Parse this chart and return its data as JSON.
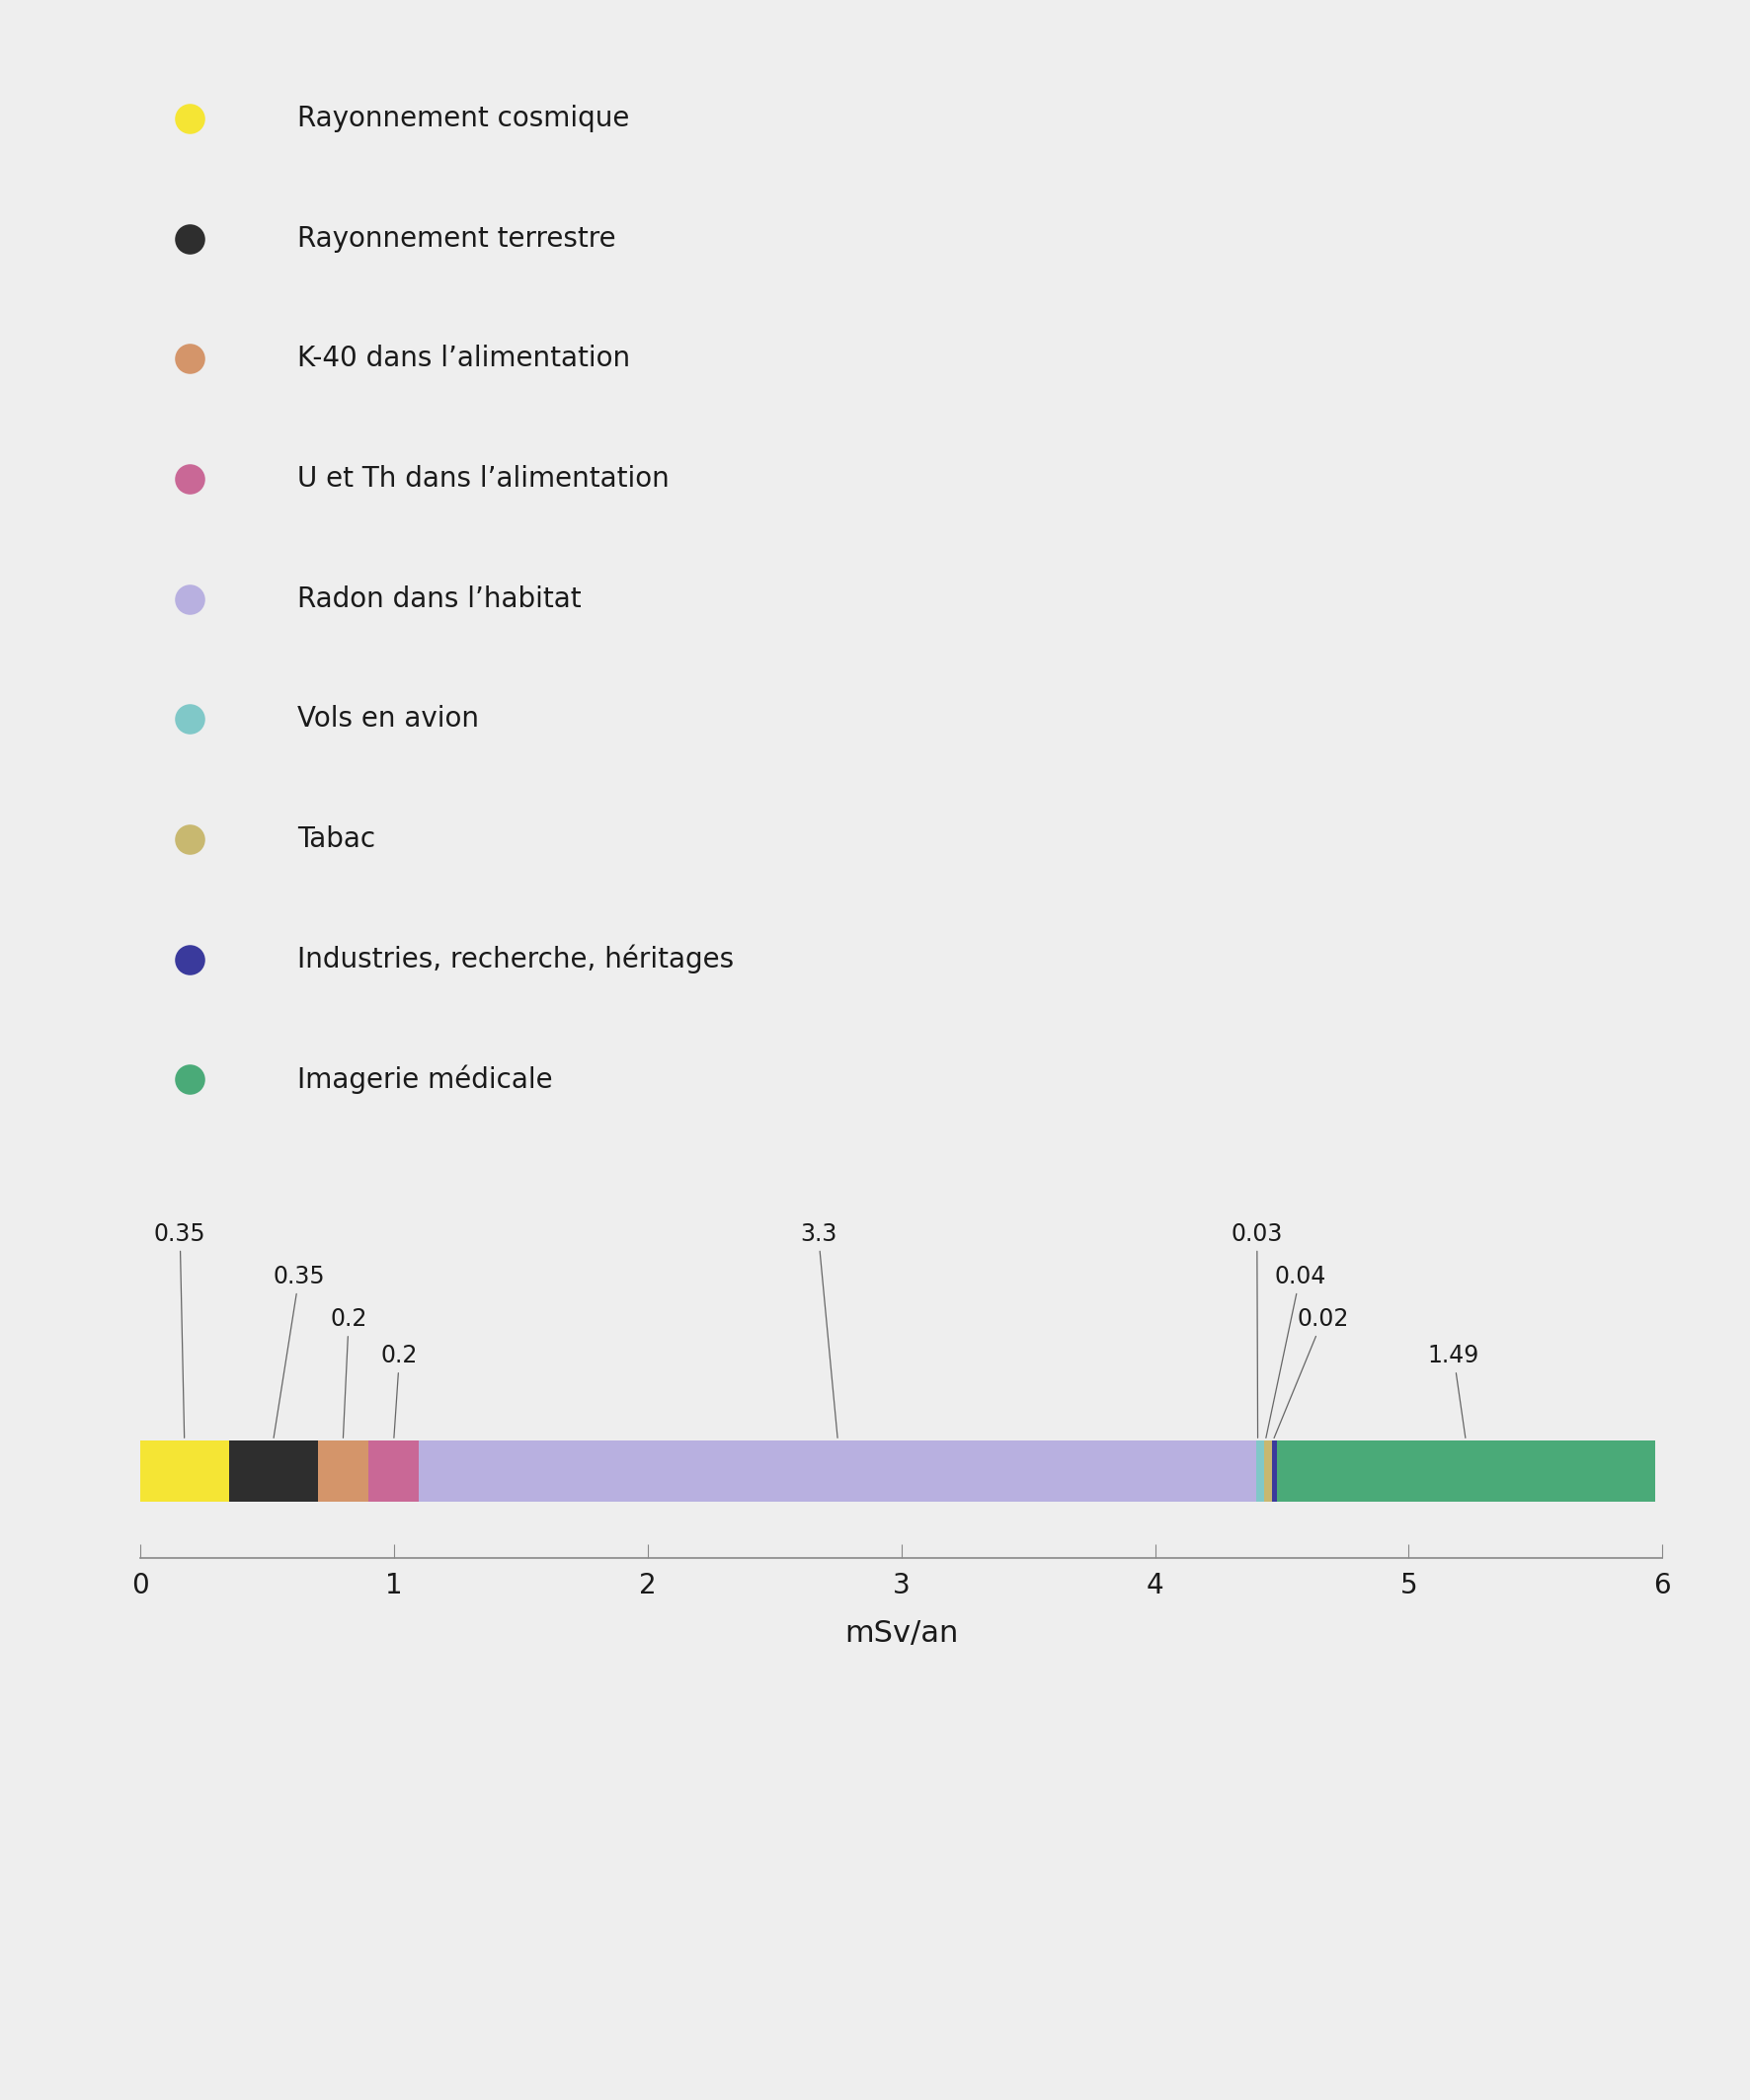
{
  "background_color": "#eeeeee",
  "segments": [
    {
      "label": "Rayonnement cosmique",
      "value": 0.35,
      "color": "#f5e534"
    },
    {
      "label": "Rayonnement terrestre",
      "value": 0.35,
      "color": "#2e2e2e"
    },
    {
      "label": "K-40 dans l’alimentation",
      "value": 0.2,
      "color": "#d4956a"
    },
    {
      "label": "U et Th dans l’alimentation",
      "value": 0.2,
      "color": "#c96896"
    },
    {
      "label": "Radon dans l’habitat",
      "value": 3.3,
      "color": "#b8b0e0"
    },
    {
      "label": "Vols en avion",
      "value": 0.03,
      "color": "#80c8c8"
    },
    {
      "label": "Tabac",
      "value": 0.03,
      "color": "#c8b870"
    },
    {
      "label": "Industries, recherche, héritages",
      "value": 0.02,
      "color": "#3a3a9c"
    },
    {
      "label": "Imagerie médicale",
      "value": 1.49,
      "color": "#4aaa78"
    }
  ],
  "xlim": [
    0,
    6
  ],
  "xticks": [
    0,
    1,
    2,
    3,
    4,
    5,
    6
  ],
  "xlabel": "mSv/an",
  "font_size_legend": 20,
  "font_size_annotation": 17,
  "font_size_xtick": 20,
  "font_size_xlabel": 22,
  "legend_marker_size": 22
}
